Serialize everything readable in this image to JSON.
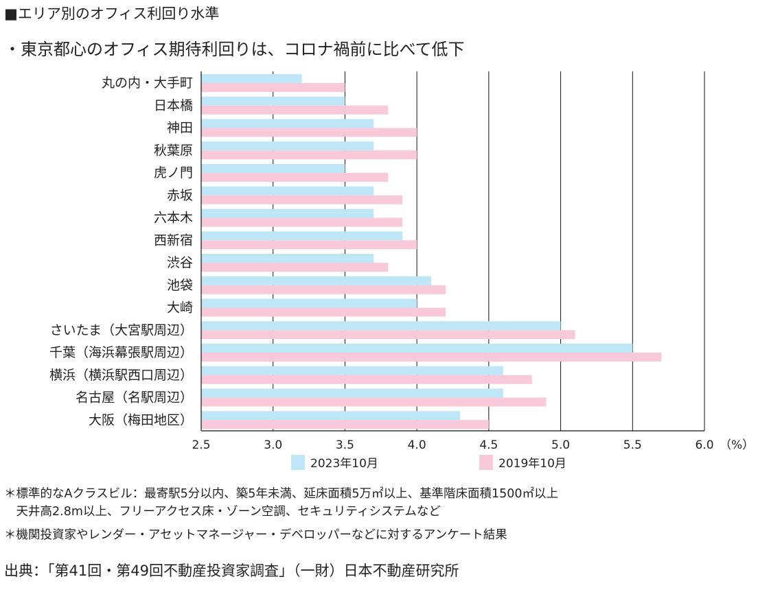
{
  "title": "■エリア別のオフィス利回り水準",
  "subtitle": "・東京都心のオフィス期待利回りは、コロナ禍前に比べて低下",
  "colors": {
    "series_2023": "#bfe6f6",
    "series_2019": "#f7c9d9",
    "grid": "#111111"
  },
  "chart_data": {
    "type": "bar",
    "orientation": "horizontal",
    "categories": [
      "丸の内・大手町",
      "日本橋",
      "神田",
      "秋葉原",
      "虎ノ門",
      "赤坂",
      "六本木",
      "西新宿",
      "渋谷",
      "池袋",
      "大崎",
      "さいたま（大宮駅周辺）",
      "千葉（海浜幕張駅周辺）",
      "横浜（横浜駅西口周辺）",
      "名古屋（名駅周辺）",
      "大阪（梅田地区）"
    ],
    "series": [
      {
        "name": "2023年10月",
        "values": [
          3.2,
          3.5,
          3.7,
          3.7,
          3.5,
          3.7,
          3.7,
          3.9,
          3.7,
          4.1,
          4.0,
          5.0,
          5.5,
          4.6,
          4.6,
          4.3
        ]
      },
      {
        "name": "2019年10月",
        "values": [
          3.5,
          3.8,
          4.0,
          4.0,
          3.8,
          3.9,
          3.9,
          4.0,
          3.8,
          4.2,
          4.2,
          5.1,
          5.7,
          4.8,
          4.9,
          4.5
        ]
      }
    ],
    "xlim": [
      2.5,
      6.0
    ],
    "xticks": [
      "2.5",
      "3.0",
      "3.5",
      "4.0",
      "4.5",
      "5.0",
      "5.5",
      "6.0"
    ],
    "xunit": "（%）",
    "grid": true,
    "legend_position": "bottom"
  },
  "notes": [
    "＊標準的なAクラスビル：最寄駅5分以内、築5年未満、延床面積5万㎡以上、基準階床面積1500㎡以上",
    "　天井高2.8m以上、フリーアクセス床・ゾーン空調、セキュリティシステムなど",
    "＊機関投資家やレンダー・アセットマネージャー・デベロッパーなどに対するアンケート結果"
  ],
  "source": "出典：「第41回・第49回不動産投資家調査」（一財）日本不動産研究所"
}
